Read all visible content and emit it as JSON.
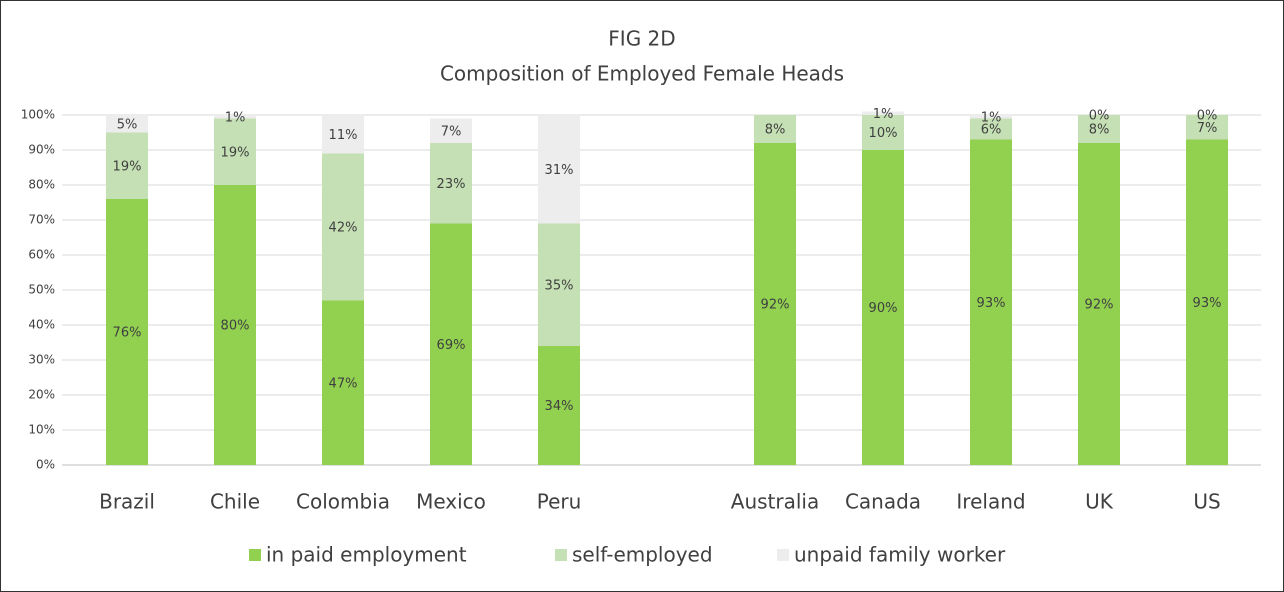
{
  "chart_data": {
    "type": "stacked_bar",
    "title": "FIG 2D",
    "subtitle": "Composition of Employed Female Heads",
    "categories": [
      "Brazil",
      "Chile",
      "Colombia",
      "Mexico",
      "Peru",
      null,
      "Australia",
      "Canada",
      "Ireland",
      "UK",
      "US"
    ],
    "series": [
      {
        "name": "in paid employment",
        "color": "#92d050",
        "values": [
          76,
          80,
          47,
          69,
          34,
          null,
          92,
          90,
          93,
          92,
          93
        ],
        "value_labels": [
          "76%",
          "80%",
          "47%",
          "69%",
          "34%",
          null,
          "92%",
          "90%",
          "93%",
          "92%",
          "93%"
        ]
      },
      {
        "name": "self-employed",
        "color": "#c5e0b4",
        "values": [
          19,
          19,
          42,
          23,
          35,
          null,
          8,
          10,
          6,
          8,
          7
        ],
        "value_labels": [
          "19%",
          "19%",
          "42%",
          "23%",
          "35%",
          null,
          "8%",
          "10%",
          "6%",
          "8%",
          "7%"
        ]
      },
      {
        "name": "unpaid family worker",
        "color": "#ededed",
        "values": [
          5,
          1,
          11,
          7,
          31,
          null,
          null,
          1,
          1,
          0,
          0
        ],
        "value_labels": [
          "5%",
          "1%",
          "11%",
          "7%",
          "31%",
          null,
          null,
          "1%",
          "1%",
          "0%",
          "0%"
        ]
      }
    ],
    "ylim": [
      0,
      100
    ],
    "yticks": [
      {
        "value": 0,
        "label": "0%"
      },
      {
        "value": 10,
        "label": "10%"
      },
      {
        "value": 20,
        "label": "20%"
      },
      {
        "value": 30,
        "label": "30%"
      },
      {
        "value": 40,
        "label": "40%"
      },
      {
        "value": 50,
        "label": "50%"
      },
      {
        "value": 60,
        "label": "60%"
      },
      {
        "value": 70,
        "label": "70%"
      },
      {
        "value": 80,
        "label": "80%"
      },
      {
        "value": 90,
        "label": "90%"
      },
      {
        "value": 100,
        "label": "100%"
      }
    ],
    "grid": true,
    "legend": "bottom"
  }
}
